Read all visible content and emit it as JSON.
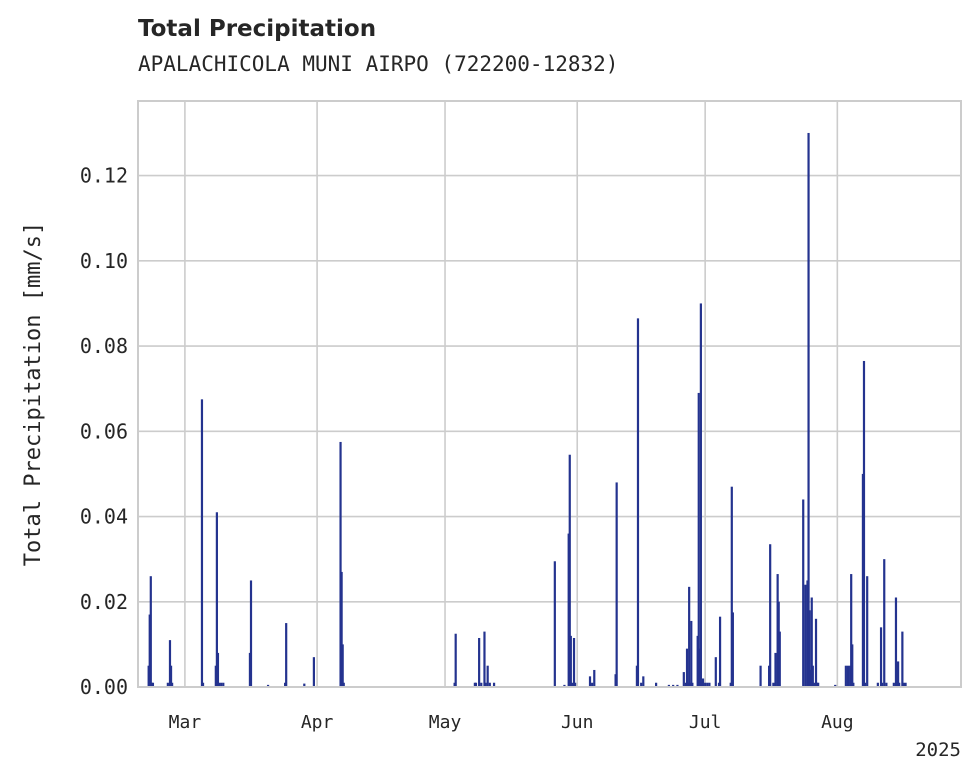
{
  "title": "Total Precipitation",
  "subtitle": "APALACHICOLA MUNI AIRPO (722200-12832)",
  "colors": {
    "bar": "#24338f",
    "grid": "#cccccc",
    "frame": "#cccccc",
    "text": "#262626"
  },
  "chart_data": {
    "type": "bar",
    "title": "Total Precipitation",
    "subtitle": "APALACHICOLA MUNI AIRPO (722200-12832)",
    "ylabel": "Total Precipitation [mm/s]",
    "xlabel": "",
    "year_label": "2025",
    "grid": true,
    "xlim": [
      "2025-02-18",
      "2025-08-30"
    ],
    "ylim": [
      0,
      0.1375
    ],
    "x_ticks": [
      {
        "date": "2025-03-01",
        "label": "Mar"
      },
      {
        "date": "2025-04-01",
        "label": "Apr"
      },
      {
        "date": "2025-05-01",
        "label": "May"
      },
      {
        "date": "2025-06-01",
        "label": "Jun"
      },
      {
        "date": "2025-07-01",
        "label": "Jul"
      },
      {
        "date": "2025-08-01",
        "label": "Aug"
      }
    ],
    "y_ticks": [
      {
        "value": 0.0,
        "label": "0.00"
      },
      {
        "value": 0.02,
        "label": "0.02"
      },
      {
        "value": 0.04,
        "label": "0.04"
      },
      {
        "value": 0.06,
        "label": "0.06"
      },
      {
        "value": 0.08,
        "label": "0.08"
      },
      {
        "value": 0.1,
        "label": "0.10"
      },
      {
        "value": 0.12,
        "label": "0.12"
      }
    ],
    "x": [
      "2025-02-20T12:00",
      "2025-02-20T18:00",
      "2025-02-21T00:00",
      "2025-02-21T06:00",
      "2025-02-21T12:00",
      "2025-02-25T00:00",
      "2025-02-25T12:00",
      "2025-02-25T18:00",
      "2025-02-26T00:00",
      "2025-03-05T00:00",
      "2025-03-05T06:00",
      "2025-03-08T06:00",
      "2025-03-08T12:00",
      "2025-03-08T18:00",
      "2025-03-09T00:00",
      "2025-03-09T12:00",
      "2025-03-10T00:00",
      "2025-03-16T06:00",
      "2025-03-16T12:00",
      "2025-03-20T12:00",
      "2025-03-24T12:00",
      "2025-03-24T18:00",
      "2025-03-29T00:00",
      "2025-03-31T06:00",
      "2025-04-06T12:00",
      "2025-04-06T18:00",
      "2025-04-07T00:00",
      "2025-04-07T06:00",
      "2025-05-03T06:00",
      "2025-05-03T12:00",
      "2025-05-08T00:00",
      "2025-05-08T06:00",
      "2025-05-09T00:00",
      "2025-05-09T12:00",
      "2025-05-10T06:00",
      "2025-05-10T12:00",
      "2025-05-11T00:00",
      "2025-05-11T12:00",
      "2025-05-12T12:00",
      "2025-05-26T18:00",
      "2025-05-29T00:00",
      "2025-05-30T00:00",
      "2025-05-30T06:00",
      "2025-05-30T12:00",
      "2025-05-30T18:00",
      "2025-05-31T06:00",
      "2025-05-31T12:00",
      "2025-06-04T00:00",
      "2025-06-04T12:00",
      "2025-06-05T00:00",
      "2025-06-10T00:00",
      "2025-06-10T06:00",
      "2025-06-15T00:00",
      "2025-06-15T06:00",
      "2025-06-16T00:00",
      "2025-06-16T12:00",
      "2025-06-19T12:00",
      "2025-06-22T12:00",
      "2025-06-23T12:00",
      "2025-06-24T12:00",
      "2025-06-26T00:00",
      "2025-06-26T12:00",
      "2025-06-26T18:00",
      "2025-06-27T00:00",
      "2025-06-27T06:00",
      "2025-06-27T12:00",
      "2025-06-27T18:00",
      "2025-06-28T00:00",
      "2025-06-29T06:00",
      "2025-06-29T12:00",
      "2025-06-29T18:00",
      "2025-06-30T00:00",
      "2025-06-30T06:00",
      "2025-06-30T12:00",
      "2025-07-01T00:00",
      "2025-07-01T12:00",
      "2025-07-02T00:00",
      "2025-07-03T12:00",
      "2025-07-04T06:00",
      "2025-07-04T12:00",
      "2025-07-07T00:00",
      "2025-07-07T06:00",
      "2025-07-07T12:00",
      "2025-07-14T00:00",
      "2025-07-16T00:00",
      "2025-07-16T06:00",
      "2025-07-17T00:00",
      "2025-07-17T12:00",
      "2025-07-18T00:00",
      "2025-07-18T06:00",
      "2025-07-18T12:00",
      "2025-07-24T00:00",
      "2025-07-24T12:00",
      "2025-07-25T00:00",
      "2025-07-25T06:00",
      "2025-07-25T12:00",
      "2025-07-25T18:00",
      "2025-07-26T00:00",
      "2025-07-26T06:00",
      "2025-07-26T12:00",
      "2025-07-27T00:00",
      "2025-07-27T06:00",
      "2025-07-27T12:00",
      "2025-07-31T12:00",
      "2025-08-03T00:00",
      "2025-08-03T12:00",
      "2025-08-04T00:00",
      "2025-08-04T06:00",
      "2025-08-04T12:00",
      "2025-08-04T18:00",
      "2025-08-07T00:00",
      "2025-08-07T06:00",
      "2025-08-07T12:00",
      "2025-08-08T00:00",
      "2025-08-10T12:00",
      "2025-08-11T06:00",
      "2025-08-11T12:00",
      "2025-08-12T00:00",
      "2025-08-12T12:00",
      "2025-08-14T06:00",
      "2025-08-14T18:00",
      "2025-08-15T06:00",
      "2025-08-15T12:00",
      "2025-08-16T06:00",
      "2025-08-16T12:00",
      "2025-08-17T00:00"
    ],
    "series": [
      {
        "values": [
          0.005,
          0.017,
          0.026,
          0.001,
          0.001,
          0.001,
          0.011,
          0.005,
          0.001,
          0.0675,
          0.001,
          0.005,
          0.041,
          0.008,
          0.001,
          0.001,
          0.001,
          0.008,
          0.025,
          0.0005,
          0.001,
          0.015,
          0.0008,
          0.007,
          0.0575,
          0.027,
          0.01,
          0.001,
          0.001,
          0.0125,
          0.001,
          0.001,
          0.0115,
          0.001,
          0.013,
          0.001,
          0.005,
          0.001,
          0.001,
          0.0295,
          0.0005,
          0.036,
          0.0545,
          0.012,
          0.001,
          0.0115,
          0.001,
          0.0025,
          0.001,
          0.004,
          0.003,
          0.048,
          0.005,
          0.0865,
          0.001,
          0.0025,
          0.001,
          0.0005,
          0.0005,
          0.0005,
          0.0035,
          0.001,
          0.009,
          0.001,
          0.0235,
          0.001,
          0.0155,
          0.001,
          0.012,
          0.069,
          0.009,
          0.09,
          0.001,
          0.002,
          0.001,
          0.001,
          0.001,
          0.007,
          0.001,
          0.0165,
          0.001,
          0.047,
          0.0175,
          0.005,
          0.005,
          0.0335,
          0.001,
          0.008,
          0.0265,
          0.02,
          0.013,
          0.044,
          0.024,
          0.025,
          0.13,
          0.018,
          0.004,
          0.021,
          0.005,
          0.001,
          0.016,
          0.001,
          0.001,
          0.0005,
          0.005,
          0.005,
          0.005,
          0.0265,
          0.01,
          0.001,
          0.05,
          0.0765,
          0.001,
          0.026,
          0.001,
          0.014,
          0.001,
          0.03,
          0.001,
          0.001,
          0.021,
          0.006,
          0.001,
          0.013,
          0.001,
          0.001
        ]
      }
    ]
  }
}
